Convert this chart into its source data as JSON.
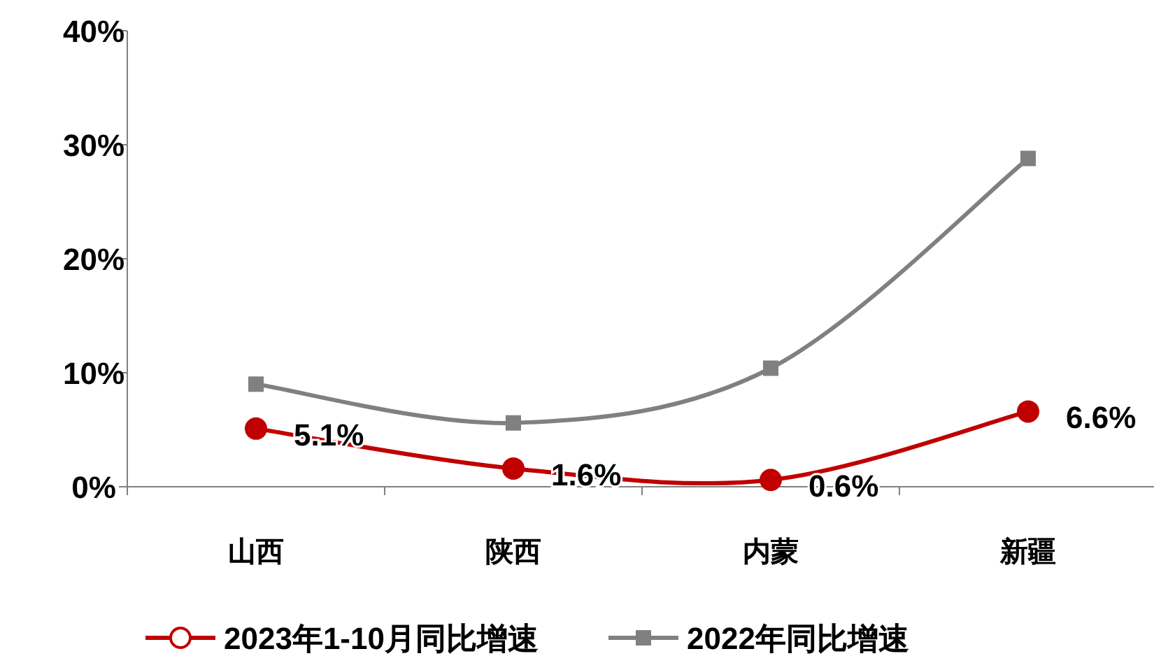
{
  "chart_data": {
    "type": "line",
    "categories": [
      "山西",
      "陕西",
      "内蒙",
      "新疆"
    ],
    "series": [
      {
        "name": "2023年1-10月同比增速",
        "color": "#c00000",
        "marker": "circle",
        "values": [
          5.1,
          1.6,
          0.6,
          6.6
        ],
        "value_labels": [
          "5.1%",
          "1.6%",
          "0.6%",
          "6.6%"
        ]
      },
      {
        "name": "2022年同比增速",
        "color": "#808080",
        "marker": "square",
        "values": [
          9.0,
          5.6,
          10.4,
          28.8
        ]
      }
    ],
    "ylim": [
      0,
      40
    ],
    "yticks": [
      {
        "value": 0,
        "label": "0%"
      },
      {
        "value": 10,
        "label": "10%"
      },
      {
        "value": 20,
        "label": "20%"
      },
      {
        "value": 30,
        "label": "30%"
      },
      {
        "value": 40,
        "label": "40%"
      }
    ],
    "grid": false,
    "legend": "bottom",
    "line_style": "solid"
  }
}
